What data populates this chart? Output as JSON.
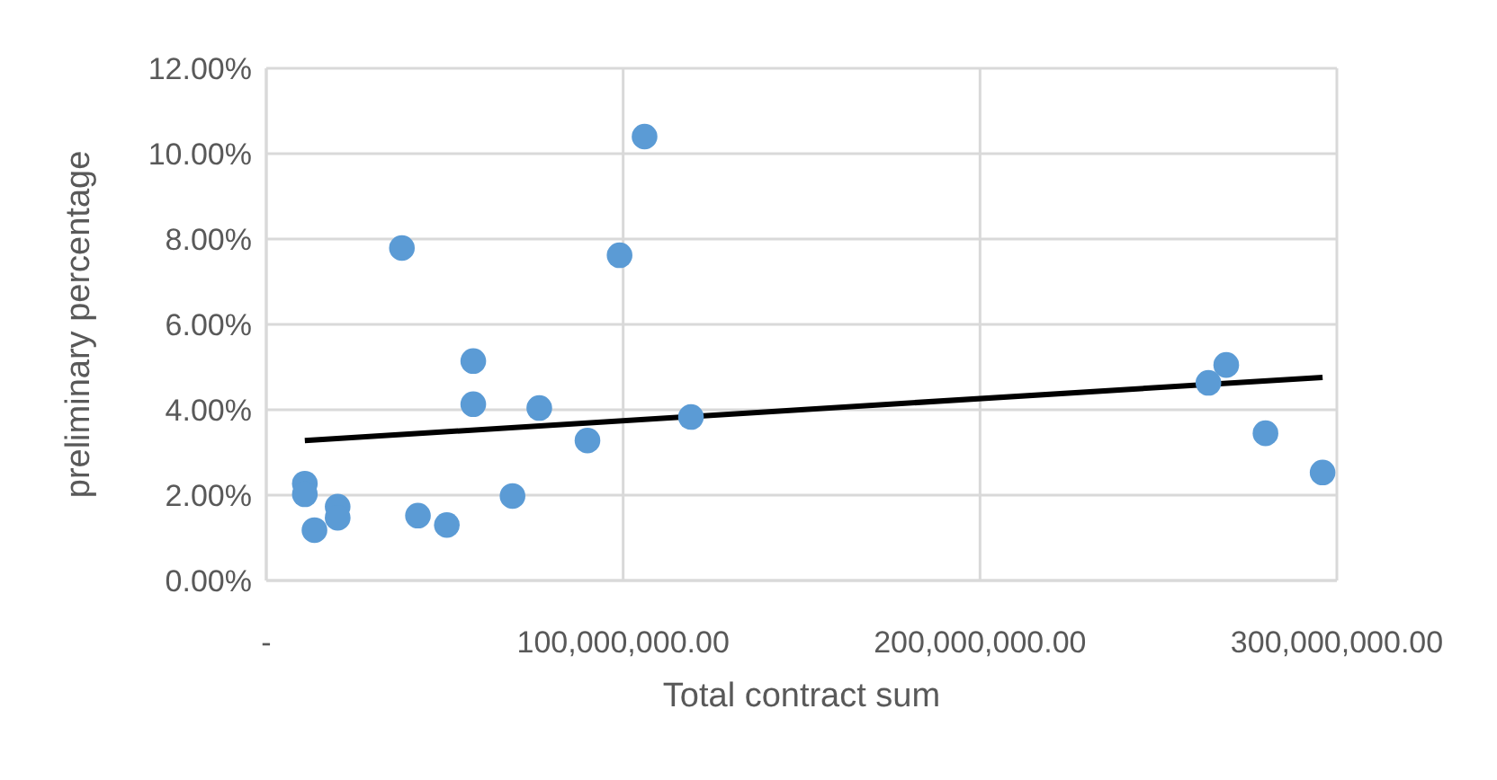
{
  "chart_data": {
    "type": "scatter",
    "xlabel": "Total contract sum",
    "ylabel": "preliminary percentage",
    "series": [
      {
        "color": "#5b9bd5",
        "x": [
          10800000,
          10800000,
          13500000,
          20000000,
          20000000,
          38000000,
          42500000,
          50600000,
          58000000,
          58000000,
          69000000,
          76500000,
          90000000,
          99000000,
          106000000,
          119000000,
          264000000,
          269000000,
          280000000,
          296000000
        ],
        "values": [
          2.27,
          2.02,
          1.18,
          1.73,
          1.47,
          7.79,
          1.52,
          1.3,
          5.14,
          4.13,
          1.98,
          4.04,
          3.28,
          7.62,
          10.4,
          3.83,
          4.63,
          5.05,
          3.45,
          2.53
        ],
        "marker": "circle"
      },
      {
        "type": "line",
        "color": "#000000",
        "x": [
          10800000,
          296000000
        ],
        "values": [
          3.28,
          4.76
        ],
        "marker": "none",
        "line_style": "solid"
      }
    ],
    "xlim": [
      0,
      300000000
    ],
    "xticks": [
      {
        "value": 0,
        "label": "-"
      },
      {
        "value": 100000000,
        "label": "100,000,000.00"
      },
      {
        "value": 200000000,
        "label": "200,000,000.00"
      },
      {
        "value": 300000000,
        "label": "300,000,000.00"
      }
    ],
    "ylim": [
      0,
      12
    ],
    "yticks": [
      {
        "value": 0,
        "label": "0.00%"
      },
      {
        "value": 2,
        "label": "2.00%"
      },
      {
        "value": 4,
        "label": "4.00%"
      },
      {
        "value": 6,
        "label": "6.00%"
      },
      {
        "value": 8,
        "label": "8.00%"
      },
      {
        "value": 10,
        "label": "10.00%"
      },
      {
        "value": 12,
        "label": "12.00%"
      }
    ],
    "grid": true
  }
}
